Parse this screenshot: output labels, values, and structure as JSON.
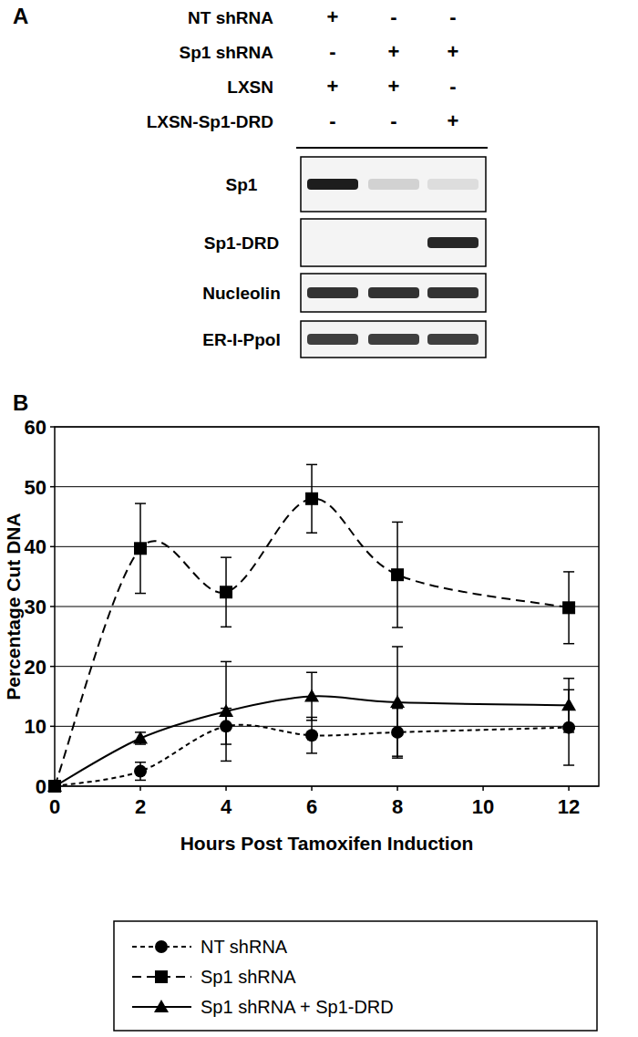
{
  "panel_a": {
    "label": "A",
    "conditions": [
      {
        "name": "NT shRNA",
        "signs": [
          "+",
          "-",
          "-"
        ]
      },
      {
        "name": "Sp1 shRNA",
        "signs": [
          "-",
          "+",
          "+"
        ]
      },
      {
        "name": "LXSN",
        "signs": [
          "+",
          "+",
          "-"
        ]
      },
      {
        "name": "LXSN-Sp1-DRD",
        "signs": [
          "-",
          "-",
          "+"
        ]
      }
    ],
    "blots": [
      {
        "name": "Sp1",
        "intensity": [
          0.95,
          0.15,
          0.1
        ]
      },
      {
        "name": "Sp1-DRD",
        "intensity": [
          0,
          0,
          0.9
        ]
      },
      {
        "name": "Nucleolin",
        "intensity": [
          0.85,
          0.85,
          0.85
        ]
      },
      {
        "name": "ER-I-PpoI",
        "intensity": [
          0.8,
          0.8,
          0.8
        ]
      }
    ]
  },
  "panel_b": {
    "label": "B"
  },
  "chart_data": {
    "type": "line",
    "x_label": "Hours Post Tamoxifen Induction",
    "y_label": "Percentage Cut DNA",
    "x": [
      0,
      2,
      4,
      6,
      8,
      12
    ],
    "series": [
      {
        "name": "NT shRNA",
        "color": "#000000",
        "marker": "circle",
        "line_style": "dashed",
        "values": [
          0,
          2.5,
          10,
          8.5,
          9,
          9.8
        ],
        "errors": [
          0,
          1.5,
          3,
          3,
          4,
          6.3
        ]
      },
      {
        "name": "Sp1 shRNA",
        "color": "#000000",
        "marker": "square",
        "line_style": "long-dashed",
        "values": [
          0,
          39.7,
          32.4,
          48,
          35.3,
          29.8
        ],
        "errors": [
          0,
          7.5,
          5.8,
          5.7,
          8.8,
          6
        ]
      },
      {
        "name": "Sp1 shRNA + Sp1-DRD",
        "color": "#000000",
        "marker": "triangle",
        "line_style": "solid",
        "values": [
          0,
          8,
          12.5,
          15,
          14,
          13.5
        ],
        "errors": [
          0,
          1,
          8.3,
          4,
          9.3,
          4.5
        ]
      }
    ],
    "xlim": [
      0,
      12.7
    ],
    "xticks": [
      0,
      2,
      4,
      6,
      8,
      10,
      12
    ],
    "ylim": [
      0,
      60
    ],
    "yticks": [
      0,
      10,
      20,
      30,
      40,
      50,
      60
    ],
    "grid": true,
    "legend": "bottom"
  }
}
